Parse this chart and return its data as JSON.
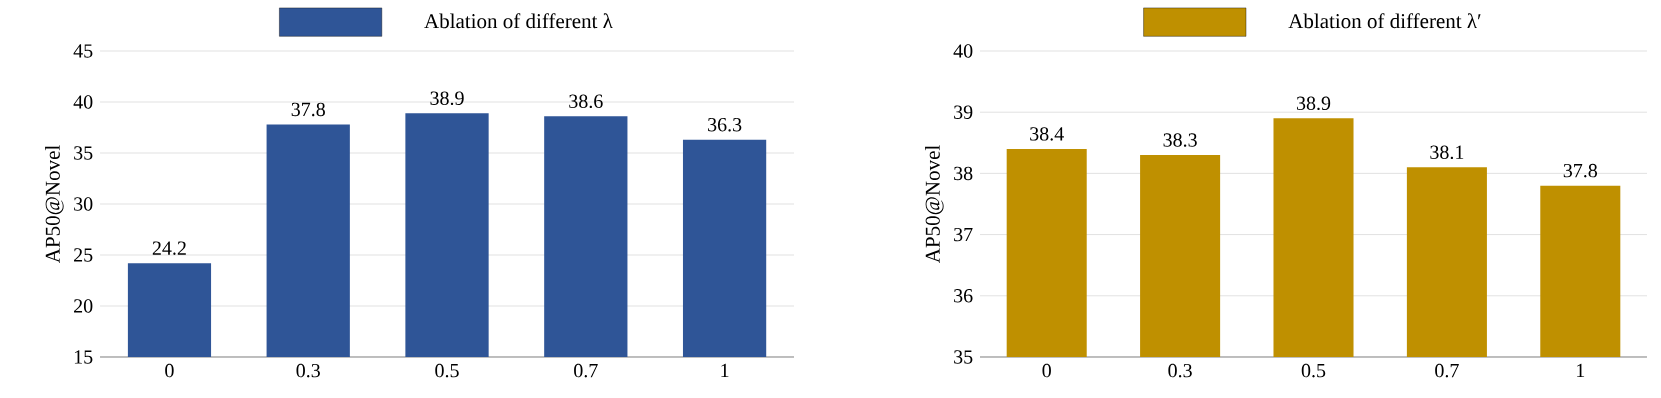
{
  "chart_data": [
    {
      "type": "bar",
      "categories": [
        "0",
        "0.3",
        "0.5",
        "0.7",
        "1"
      ],
      "ylabel": "AP50@Novel",
      "series": [
        {
          "name": "Ablation of different λ",
          "color": "#2f5597",
          "values": [
            24.2,
            37.8,
            38.9,
            38.6,
            36.3
          ]
        }
      ],
      "ylim": [
        15,
        45
      ],
      "yticks": [
        15,
        20,
        25,
        30,
        35,
        40,
        45
      ],
      "grid": "y",
      "legend": "top",
      "data_labels": true
    },
    {
      "type": "bar",
      "categories": [
        "0",
        "0.3",
        "0.5",
        "0.7",
        "1"
      ],
      "ylabel": "AP50@Novel",
      "series": [
        {
          "name": "Ablation of different λ′",
          "color": "#bf9000",
          "values": [
            38.4,
            38.3,
            38.9,
            38.1,
            37.8
          ]
        }
      ],
      "ylim": [
        35,
        40
      ],
      "yticks": [
        35,
        36,
        37,
        38,
        39,
        40
      ],
      "grid": "y",
      "legend": "top",
      "data_labels": true
    }
  ]
}
